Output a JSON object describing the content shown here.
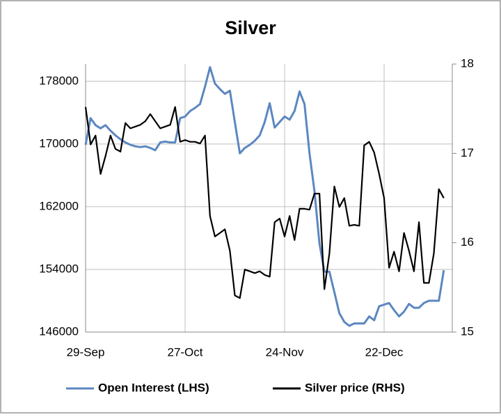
{
  "chart_data": {
    "type": "line",
    "title": "Silver",
    "categories": [
      "29-Sep",
      null,
      null,
      null,
      null,
      null,
      null,
      null,
      null,
      null,
      null,
      null,
      null,
      null,
      null,
      null,
      null,
      null,
      null,
      null,
      "27-Oct",
      null,
      null,
      null,
      null,
      null,
      null,
      null,
      null,
      null,
      null,
      null,
      null,
      null,
      null,
      null,
      null,
      null,
      null,
      null,
      "24-Nov",
      null,
      null,
      null,
      null,
      null,
      null,
      null,
      null,
      null,
      null,
      null,
      null,
      null,
      null,
      null,
      null,
      null,
      null,
      null,
      "22-Dec",
      null,
      null,
      null,
      null,
      null,
      null,
      null,
      null,
      null,
      null,
      null,
      null
    ],
    "series": [
      {
        "name": "Open Interest (LHS)",
        "color": "#5b87c0",
        "axis": "y",
        "values": [
          169900,
          173300,
          172400,
          172000,
          172400,
          171700,
          171100,
          170600,
          170200,
          169900,
          169700,
          169600,
          169700,
          169500,
          169200,
          170200,
          170300,
          170200,
          170200,
          173300,
          173500,
          174200,
          174600,
          175100,
          177300,
          179800,
          177700,
          177000,
          176400,
          176800,
          172800,
          168800,
          169500,
          169900,
          170400,
          171100,
          172800,
          175200,
          172100,
          172800,
          173500,
          173100,
          174200,
          176700,
          175100,
          168800,
          164000,
          157300,
          153700,
          153700,
          151100,
          148400,
          147300,
          146800,
          147100,
          147100,
          147100,
          148000,
          147500,
          149300,
          149500,
          149700,
          148800,
          148000,
          148600,
          149600,
          149100,
          149100,
          149700,
          150000,
          150000,
          150000,
          153900
        ]
      },
      {
        "name": "Silver price (RHS)",
        "color": "#000000",
        "axis": "y2",
        "values": [
          17.52,
          17.1,
          17.2,
          16.77,
          16.97,
          17.2,
          17.05,
          17.02,
          17.34,
          17.28,
          17.3,
          17.32,
          17.36,
          17.44,
          17.36,
          17.28,
          17.3,
          17.32,
          17.52,
          17.13,
          17.15,
          17.13,
          17.13,
          17.11,
          17.2,
          16.3,
          16.07,
          16.11,
          16.15,
          15.91,
          15.41,
          15.38,
          15.7,
          15.68,
          15.66,
          15.68,
          15.64,
          15.62,
          16.23,
          16.27,
          16.07,
          16.3,
          16.03,
          16.38,
          16.38,
          16.37,
          16.55,
          16.55,
          15.48,
          15.88,
          16.63,
          16.4,
          16.5,
          16.19,
          16.2,
          16.19,
          17.09,
          17.13,
          17.01,
          16.77,
          16.5,
          15.72,
          15.9,
          15.68,
          16.11,
          15.91,
          15.68,
          16.23,
          15.55,
          15.55,
          15.88,
          16.6,
          16.5
        ]
      }
    ],
    "ylim": [
      146000,
      180200
    ],
    "yticks": [
      146000,
      154000,
      162000,
      170000,
      178000
    ],
    "y2lim": [
      15,
      18
    ],
    "y2ticks": [
      15,
      16,
      17,
      18
    ],
    "grid": true,
    "legend": "bottom"
  }
}
